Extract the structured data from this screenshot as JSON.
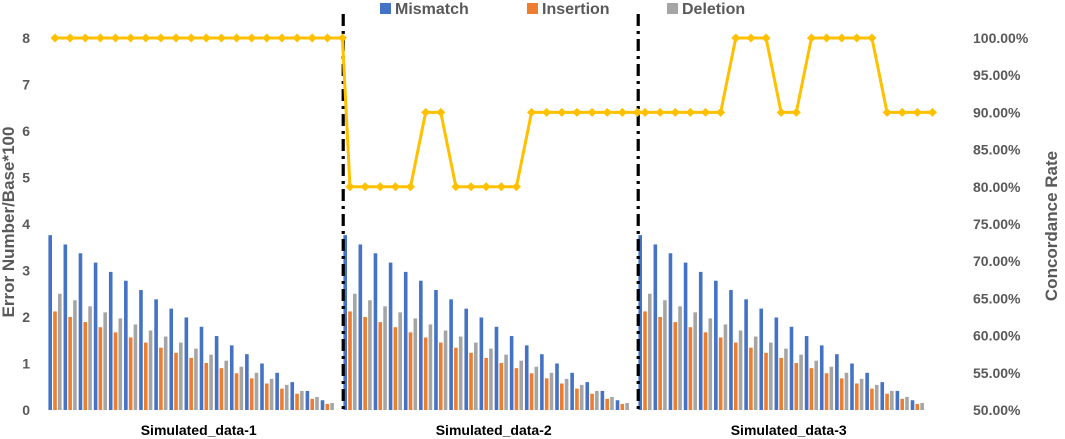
{
  "chart_data": {
    "type": "bar",
    "title": "",
    "xlabel": "",
    "ylabel": "Error Number/Base*100",
    "y2label": "Concordance Rate",
    "ylim": [
      0,
      8
    ],
    "y2lim": [
      50,
      100
    ],
    "yticks": [
      "0",
      "1",
      "2",
      "3",
      "4",
      "5",
      "6",
      "7",
      "8"
    ],
    "y2ticks": [
      "50.00%",
      "55.00%",
      "60.00%",
      "65.00%",
      "70.00%",
      "75.00%",
      "80.00%",
      "85.00%",
      "90.00%",
      "95.00%",
      "100.00%"
    ],
    "grid": false,
    "legend_position": "top",
    "groups": [
      "Simulated_data-1",
      "Simulated_data-2",
      "Simulated_data-3"
    ],
    "points_per_group": 20,
    "colors": {
      "Mismatch": "#4472c4",
      "Insertion": "#ed7d31",
      "Deletion": "#a5a5a5",
      "Concordance Rate": "#ffc000"
    },
    "series": [
      {
        "name": "Mismatch",
        "axis": "left",
        "values": [
          3.76,
          3.56,
          3.37,
          3.17,
          2.97,
          2.78,
          2.58,
          2.38,
          2.18,
          1.99,
          1.79,
          1.59,
          1.39,
          1.2,
          1.0,
          0.8,
          0.6,
          0.41,
          0.21,
          0.0,
          3.76,
          3.56,
          3.37,
          3.17,
          2.97,
          2.78,
          2.58,
          2.38,
          2.18,
          1.99,
          1.79,
          1.59,
          1.39,
          1.2,
          1.0,
          0.8,
          0.6,
          0.41,
          0.21,
          0.0,
          3.76,
          3.56,
          3.37,
          3.17,
          2.97,
          2.78,
          2.58,
          2.38,
          2.18,
          1.99,
          1.79,
          1.59,
          1.39,
          1.2,
          1.0,
          0.8,
          0.6,
          0.41,
          0.21,
          0.0
        ]
      },
      {
        "name": "Insertion",
        "axis": "left",
        "values": [
          2.12,
          2.0,
          1.89,
          1.78,
          1.67,
          1.56,
          1.45,
          1.34,
          1.23,
          1.12,
          1.01,
          0.9,
          0.79,
          0.68,
          0.57,
          0.46,
          0.35,
          0.24,
          0.13,
          0.0,
          2.12,
          2.0,
          1.89,
          1.78,
          1.67,
          1.56,
          1.45,
          1.34,
          1.23,
          1.12,
          1.01,
          0.9,
          0.79,
          0.68,
          0.57,
          0.46,
          0.35,
          0.24,
          0.13,
          0.0,
          2.12,
          2.0,
          1.89,
          1.78,
          1.67,
          1.56,
          1.45,
          1.34,
          1.23,
          1.12,
          1.01,
          0.9,
          0.79,
          0.68,
          0.57,
          0.46,
          0.35,
          0.24,
          0.13,
          0.0
        ]
      },
      {
        "name": "Deletion",
        "axis": "left",
        "values": [
          2.5,
          2.36,
          2.23,
          2.1,
          1.97,
          1.84,
          1.71,
          1.58,
          1.45,
          1.32,
          1.19,
          1.06,
          0.93,
          0.8,
          0.67,
          0.54,
          0.41,
          0.28,
          0.15,
          0.0,
          2.5,
          2.36,
          2.23,
          2.1,
          1.97,
          1.84,
          1.71,
          1.58,
          1.45,
          1.32,
          1.19,
          1.06,
          0.93,
          0.8,
          0.67,
          0.54,
          0.41,
          0.28,
          0.15,
          0.0,
          2.5,
          2.36,
          2.23,
          2.1,
          1.97,
          1.84,
          1.71,
          1.58,
          1.45,
          1.32,
          1.19,
          1.06,
          0.93,
          0.8,
          0.67,
          0.54,
          0.41,
          0.28,
          0.15,
          0.0
        ]
      },
      {
        "name": "Concordance Rate",
        "type": "line",
        "axis": "right",
        "values": [
          100,
          100,
          100,
          100,
          100,
          100,
          100,
          100,
          100,
          100,
          100,
          100,
          100,
          100,
          100,
          100,
          100,
          100,
          100,
          100,
          80,
          80,
          80,
          80,
          80,
          90,
          90,
          80,
          80,
          80,
          80,
          80,
          90,
          90,
          90,
          90,
          90,
          90,
          90,
          90,
          90,
          90,
          90,
          90,
          90,
          90,
          100,
          100,
          100,
          90,
          90,
          100,
          100,
          100,
          100,
          100,
          90,
          90,
          90,
          90
        ]
      }
    ]
  }
}
